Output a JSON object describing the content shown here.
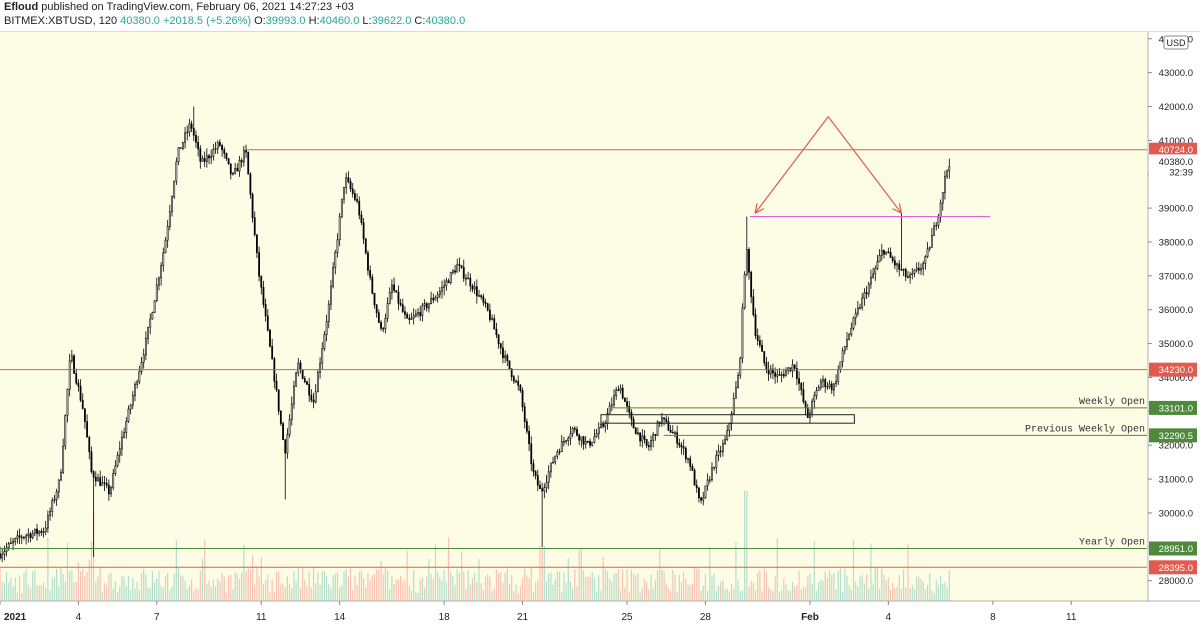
{
  "header": {
    "author": "Efloud",
    "published_text": "published on TradingView.com, February 06, 2021 14:27:23 +03",
    "symbol": "BITMEX:XBTUSD, 120",
    "last": "40380.0",
    "change": "+2018.5 (+5.26%)",
    "o_label": "O:",
    "o": "39993.0",
    "h_label": "H:",
    "h": "40460.0",
    "l_label": "L:",
    "l": "39622.0",
    "c_label": "C:",
    "c": "40380.0"
  },
  "axis": {
    "currency": "USD",
    "countdown": "32:39"
  },
  "colors": {
    "background": "#fdfde6",
    "up": "#26a69a",
    "down": "#ef5350",
    "red_level": "#e05a4e",
    "green_level": "#4f8a3c",
    "magenta_level": "#e060e0"
  },
  "chart_data": {
    "type": "candlestick",
    "ylabel": "USD",
    "ylim": [
      27400,
      44200
    ],
    "y_ticks": [
      28000,
      29000,
      30000,
      31000,
      32000,
      33000,
      34000,
      35000,
      36000,
      37000,
      38000,
      39000,
      40000,
      41000,
      42000,
      43000,
      44000
    ],
    "y_tick_labels": [
      "28000.0",
      "29000.0",
      "30000.0",
      "31000.0",
      "32000.0",
      "33000.0",
      "34000.0",
      "35000.0",
      "36000.0",
      "37000.0",
      "38000.0",
      "39000.0",
      "40000.0",
      "41000.0",
      "42000.0",
      "43000.0",
      "44000.0"
    ],
    "x_ticks": [
      "2021",
      "4",
      "7",
      "11",
      "14",
      "18",
      "21",
      "25",
      "28",
      "Feb",
      "4",
      "8",
      "11"
    ],
    "x_tick_days": [
      1,
      4,
      7,
      11,
      14,
      18,
      21,
      25,
      28,
      32,
      35,
      39,
      42
    ],
    "x_range_days": [
      1.0,
      44.9
    ],
    "path_anchors": [
      [
        1.0,
        28800
      ],
      [
        1.8,
        29300
      ],
      [
        2.7,
        29500
      ],
      [
        3.3,
        31000
      ],
      [
        3.7,
        34700
      ],
      [
        4.2,
        33000
      ],
      [
        4.5,
        31200
      ],
      [
        5.2,
        30600
      ],
      [
        5.6,
        32000
      ],
      [
        6.0,
        33200
      ],
      [
        6.6,
        35100
      ],
      [
        7.3,
        37900
      ],
      [
        7.8,
        40600
      ],
      [
        8.3,
        41500
      ],
      [
        8.7,
        40300
      ],
      [
        9.4,
        40900
      ],
      [
        9.9,
        39900
      ],
      [
        10.4,
        40700
      ],
      [
        10.9,
        37100
      ],
      [
        11.5,
        34000
      ],
      [
        11.9,
        31800
      ],
      [
        12.4,
        34400
      ],
      [
        13.0,
        33300
      ],
      [
        13.6,
        36200
      ],
      [
        14.2,
        39900
      ],
      [
        14.7,
        39100
      ],
      [
        15.2,
        36700
      ],
      [
        15.6,
        35300
      ],
      [
        16.0,
        36700
      ],
      [
        16.6,
        35600
      ],
      [
        17.3,
        36100
      ],
      [
        17.9,
        36600
      ],
      [
        18.5,
        37300
      ],
      [
        19.1,
        36700
      ],
      [
        19.7,
        35900
      ],
      [
        20.3,
        34600
      ],
      [
        20.9,
        33600
      ],
      [
        21.4,
        31200
      ],
      [
        21.7,
        30600
      ],
      [
        22.3,
        31800
      ],
      [
        22.9,
        32500
      ],
      [
        23.5,
        32000
      ],
      [
        24.1,
        32600
      ],
      [
        24.7,
        33800
      ],
      [
        25.2,
        32600
      ],
      [
        25.8,
        31900
      ],
      [
        26.3,
        32800
      ],
      [
        26.9,
        32200
      ],
      [
        27.4,
        31500
      ],
      [
        27.8,
        30200
      ],
      [
        28.3,
        31400
      ],
      [
        28.8,
        32200
      ],
      [
        29.3,
        34200
      ],
      [
        29.55,
        37900
      ],
      [
        29.9,
        35400
      ],
      [
        30.3,
        34300
      ],
      [
        30.8,
        34000
      ],
      [
        31.4,
        34400
      ],
      [
        31.9,
        32800
      ],
      [
        32.4,
        33900
      ],
      [
        32.9,
        33700
      ],
      [
        33.4,
        35100
      ],
      [
        33.9,
        36100
      ],
      [
        34.4,
        37000
      ],
      [
        34.8,
        37800
      ],
      [
        35.3,
        37300
      ],
      [
        35.8,
        36900
      ],
      [
        36.4,
        37400
      ],
      [
        36.9,
        38800
      ],
      [
        37.2,
        40000
      ],
      [
        37.35,
        40380
      ]
    ],
    "volume_note": "Volume histogram at bottom, bars colored by candle direction.",
    "levels": [
      {
        "value": 40724.0,
        "label": "40724.0",
        "color": "red",
        "x_start_day": 10.4,
        "annotation": ""
      },
      {
        "value": 34230.0,
        "label": "34230.0",
        "color": "red",
        "x_start_day": 1.0,
        "annotation": ""
      },
      {
        "value": 33101.0,
        "label": "33101.0",
        "color": "green",
        "x_start_day": 24.4,
        "annotation": "Weekly Open"
      },
      {
        "value": 32290.5,
        "label": "32290.5",
        "color": "green",
        "x_start_day": 26.4,
        "annotation": "Previous Weekly Open"
      },
      {
        "value": 28951.0,
        "label": "28951.0",
        "color": "green",
        "x_start_day": 1.0,
        "annotation": "Yearly Open"
      },
      {
        "value": 28395.0,
        "label": "28395.0",
        "color": "red",
        "x_start_day": 1.0,
        "annotation": ""
      }
    ],
    "current_price": {
      "value": 40380.0,
      "label": "40380.0"
    },
    "resistance_line": {
      "value": 38750,
      "x_start_day": 29.7,
      "x_end_day": 38.9,
      "color": "magenta"
    },
    "zone_box": {
      "x_start_day": 24.0,
      "x_end_day": 33.7,
      "y_top": 32900,
      "y_bottom": 32650
    },
    "arrows": [
      {
        "from_day": 32.7,
        "from_value": 41700,
        "to_day": 29.9,
        "to_value": 38850
      },
      {
        "from_day": 32.7,
        "from_value": 41700,
        "to_day": 35.5,
        "to_value": 38850
      }
    ]
  }
}
